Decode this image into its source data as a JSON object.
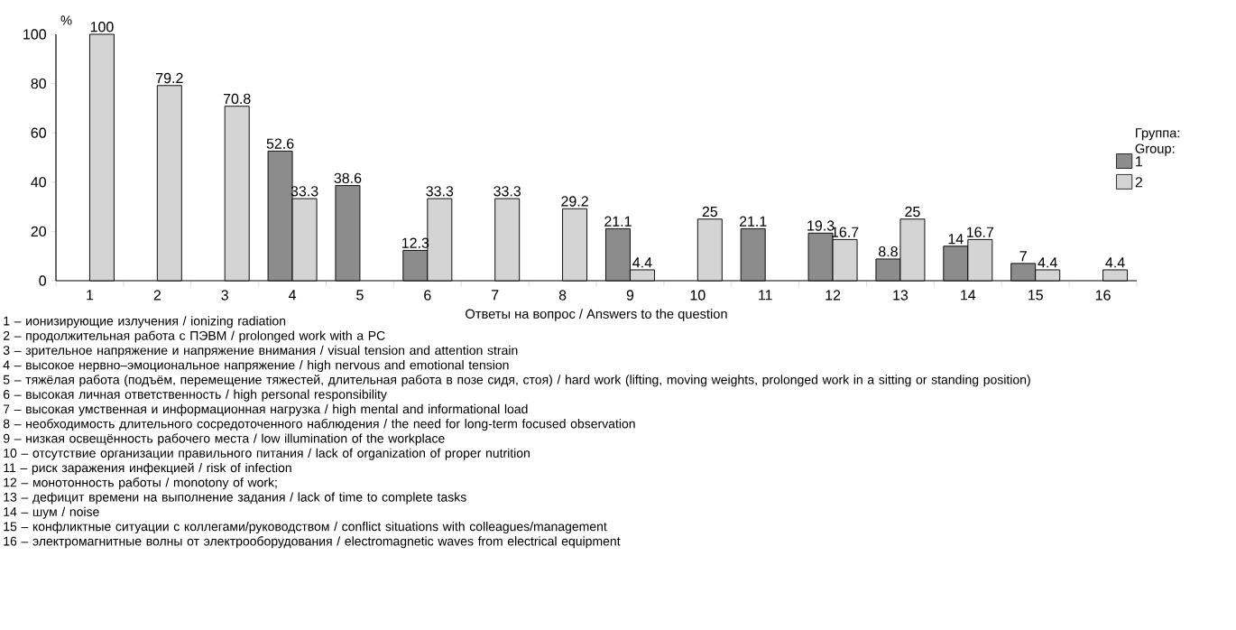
{
  "chart_data": {
    "type": "bar",
    "xlabel": "Ответы на вопрос / Answers to the question",
    "ylabel": "%",
    "legend_title": "Группа: Group:",
    "legend": "right",
    "data_labels": true,
    "categories": [
      "1",
      "2",
      "3",
      "4",
      "5",
      "6",
      "7",
      "8",
      "9",
      "10",
      "11",
      "12",
      "13",
      "14",
      "15",
      "16"
    ],
    "series": [
      {
        "name": "1",
        "color": "#8c8c8c",
        "values": [
          null,
          null,
          null,
          52.6,
          38.6,
          12.3,
          null,
          null,
          21.1,
          null,
          21.1,
          19.3,
          8.8,
          14,
          7,
          null
        ]
      },
      {
        "name": "2",
        "color": "#d4d4d4",
        "values": [
          100,
          79.2,
          70.8,
          33.3,
          null,
          33.3,
          33.3,
          29.2,
          4.4,
          25,
          null,
          16.7,
          25,
          16.7,
          4.4,
          4.4
        ]
      }
    ],
    "ylim": [
      0,
      100
    ],
    "yticks": [
      0,
      20,
      40,
      60,
      80,
      100
    ],
    "annotations": [
      "1 – ионизирующие излучения / ionizing radiation",
      "2 – продолжительная работа с ПЭВМ / prolonged work with a PC",
      "3 – зрительное напряжение и напряжение внимания / visual tension and attention strain",
      "4 – высокое нервно–эмоциональное напряжение / high nervous and emotional tension",
      "5 – тяжёлая работа (подъём, перемещение тяжестей, длительная работа в позе сидя, стоя) / hard work (lifting, moving weights, prolonged work in a sitting or standing position)",
      "6 – высокая личная ответственность / high personal responsibility",
      "7 – высокая умственная и информационная нагрузка / high mental and informational load",
      "8 – необходимость длительного сосредоточенного наблюдения / the need for long-term focused observation",
      "9 – низкая освещённость рабочего места / low illumination of the workplace",
      "10 – отсутствие организации правильного питания / lack of organization of proper nutrition",
      "11 – риск заражения инфекцией / risk of infection",
      "12 – монотонность работы / monotony of work;",
      "13 – дефицит времени на выполнение задания / lack of time to complete tasks",
      "14 – шум / noise",
      "15 – конфликтные ситуации с коллегами/руководством / conflict situations with colleagues/management",
      "16 – электромагнитные волны от электрооборудования / electromagnetic waves from electrical equipment"
    ]
  }
}
